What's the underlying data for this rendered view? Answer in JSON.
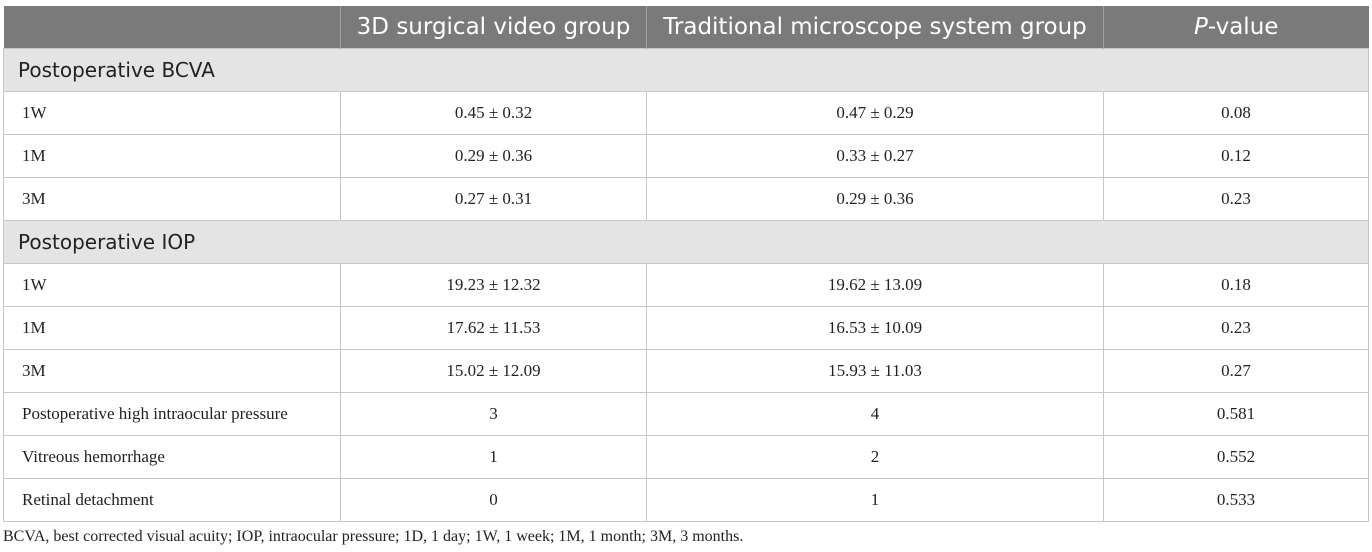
{
  "table": {
    "header": {
      "col0": "",
      "col1": "3D surgical video group",
      "col2": "Traditional microscope system group",
      "col3_italic": "P",
      "col3_rest": "-value"
    },
    "sections": [
      {
        "title": "Postoperative BCVA",
        "rows": [
          {
            "label": "1W",
            "group3d": "0.45 ± 0.32",
            "traditional": "0.47 ± 0.29",
            "p": "0.08"
          },
          {
            "label": "1M",
            "group3d": "0.29 ± 0.36",
            "traditional": "0.33 ± 0.27",
            "p": "0.12"
          },
          {
            "label": "3M",
            "group3d": "0.27 ± 0.31",
            "traditional": "0.29 ± 0.36",
            "p": "0.23"
          }
        ]
      },
      {
        "title": "Postoperative IOP",
        "rows": [
          {
            "label": "1W",
            "group3d": "19.23 ± 12.32",
            "traditional": "19.62 ± 13.09",
            "p": "0.18"
          },
          {
            "label": "1M",
            "group3d": "17.62 ± 11.53",
            "traditional": "16.53 ± 10.09",
            "p": "0.23"
          },
          {
            "label": "3M",
            "group3d": "15.02 ± 12.09",
            "traditional": "15.93 ± 11.03",
            "p": "0.27"
          }
        ]
      }
    ],
    "other_rows": [
      {
        "label": "Postoperative high intraocular pressure",
        "group3d": "3",
        "traditional": "4",
        "p": "0.581"
      },
      {
        "label": "Vitreous hemorrhage",
        "group3d": "1",
        "traditional": "2",
        "p": "0.552"
      },
      {
        "label": "Retinal detachment",
        "group3d": "0",
        "traditional": "1",
        "p": "0.533"
      }
    ]
  },
  "footnote": "BCVA, best corrected visual acuity; IOP, intraocular pressure; 1D, 1 day; 1W, 1 week; 1M, 1 month; 3M, 3 months.",
  "colors": {
    "header_bg": "#7a7a7a",
    "section_bg": "#e4e4e4",
    "border": "#c7c7c7"
  }
}
